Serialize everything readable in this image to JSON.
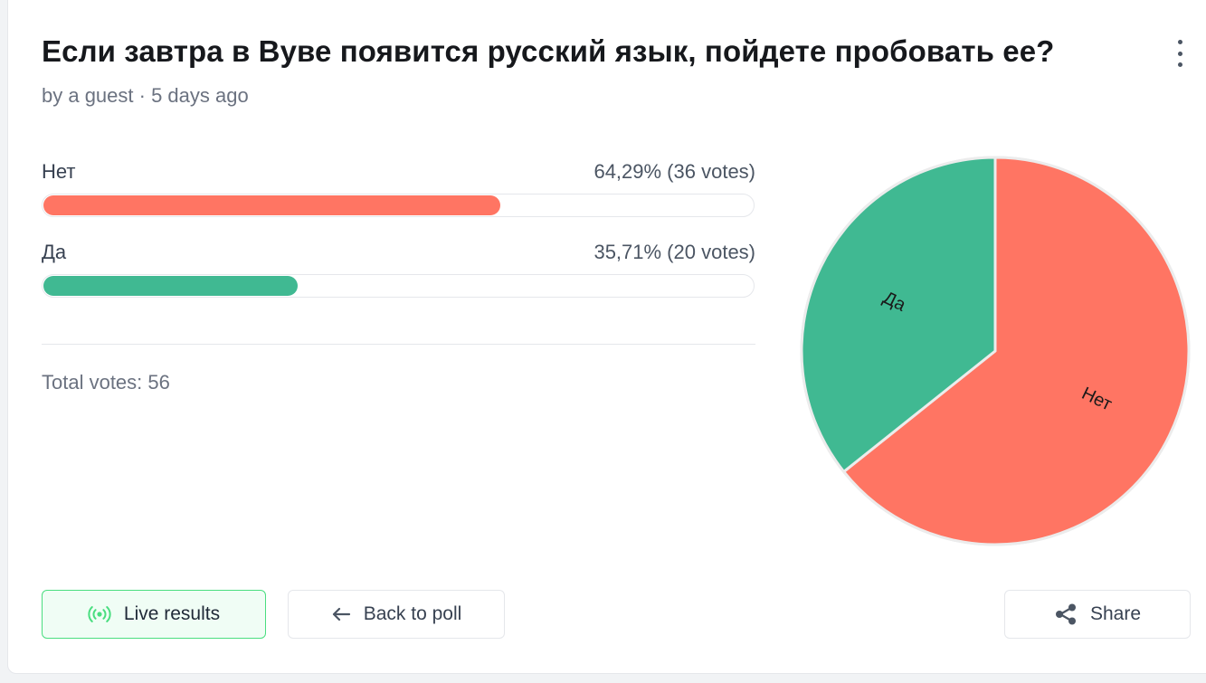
{
  "poll": {
    "title": "Если завтра в Вуве появится русский язык, пойдете пробовать ее?",
    "meta": "by a guest · 5 days ago",
    "total_votes": "Total votes: 56"
  },
  "options": [
    {
      "label": "Нет",
      "value_text": "64,29% (36 votes)",
      "percent": 64.29,
      "color": "#ff7563"
    },
    {
      "label": "Да",
      "value_text": "35,71% (20 votes)",
      "percent": 35.71,
      "color": "#40b992"
    }
  ],
  "buttons": {
    "live": "Live results",
    "back": "Back to poll",
    "share": "Share"
  },
  "icons": {
    "menu": "more-vertical-icon",
    "live": "broadcast-icon",
    "back": "arrow-left-icon",
    "share": "share-icon"
  },
  "chart_data": {
    "type": "pie",
    "categories": [
      "Нет",
      "Да"
    ],
    "values": [
      36,
      20
    ],
    "percentages": [
      64.29,
      35.71
    ],
    "colors": [
      "#ff7563",
      "#40b992"
    ],
    "title": ""
  }
}
